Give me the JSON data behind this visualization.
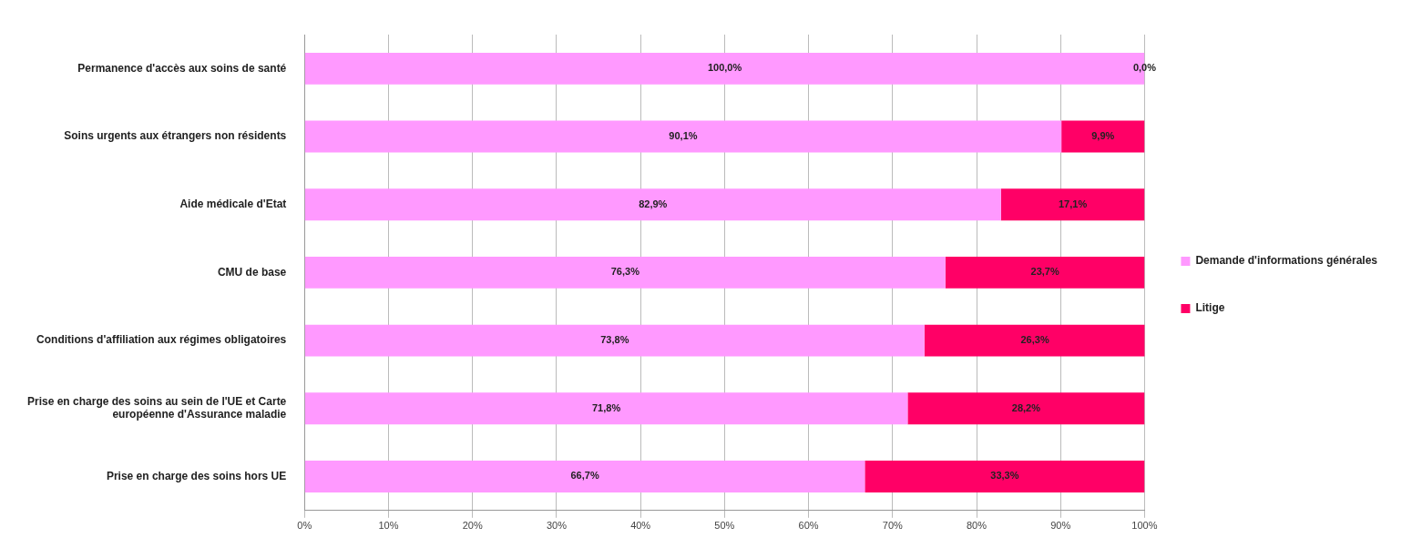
{
  "chart_data": {
    "type": "bar",
    "orientation": "horizontal",
    "stacked": true,
    "categories": [
      "Permanence d'accès aux soins de santé",
      "Soins urgents aux étrangers non résidents",
      "Aide médicale d'Etat",
      "CMU de base",
      "Conditions d'affiliation aux régimes obligatoires",
      "Prise en charge des soins au sein de l'UE et Carte européenne d'Assurance maladie",
      "Prise en charge des soins hors UE"
    ],
    "series": [
      {
        "name": "Demande d'informations générales",
        "color": "#ff99ff",
        "values": [
          100,
          90.1,
          82.9,
          76.3,
          73.8,
          71.8,
          66.7
        ],
        "value_labels": [
          "100,0%",
          "90,1%",
          "82,9%",
          "76,3%",
          "73,8%",
          "71,8%",
          "66,7%"
        ]
      },
      {
        "name": "Litige",
        "color": "#ff0066",
        "values": [
          0,
          9.9,
          17.1,
          23.7,
          26.3,
          28.2,
          33.3
        ],
        "value_labels": [
          "0,0%",
          "9,9%",
          "17,1%",
          "23,7%",
          "26,3%",
          "28,2%",
          "33,3%"
        ]
      }
    ],
    "xlim": [
      0,
      100
    ],
    "xticks": [
      {
        "value": 0,
        "label": "0%"
      },
      {
        "value": 10,
        "label": "10%"
      },
      {
        "value": 20,
        "label": "20%"
      },
      {
        "value": 30,
        "label": "30%"
      },
      {
        "value": 40,
        "label": "40%"
      },
      {
        "value": 50,
        "label": "50%"
      },
      {
        "value": 60,
        "label": "60%"
      },
      {
        "value": 70,
        "label": "70%"
      },
      {
        "value": 80,
        "label": "80%"
      },
      {
        "value": 90,
        "label": "90%"
      },
      {
        "value": 100,
        "label": "100%"
      }
    ],
    "grid": "x",
    "legend": "right"
  }
}
